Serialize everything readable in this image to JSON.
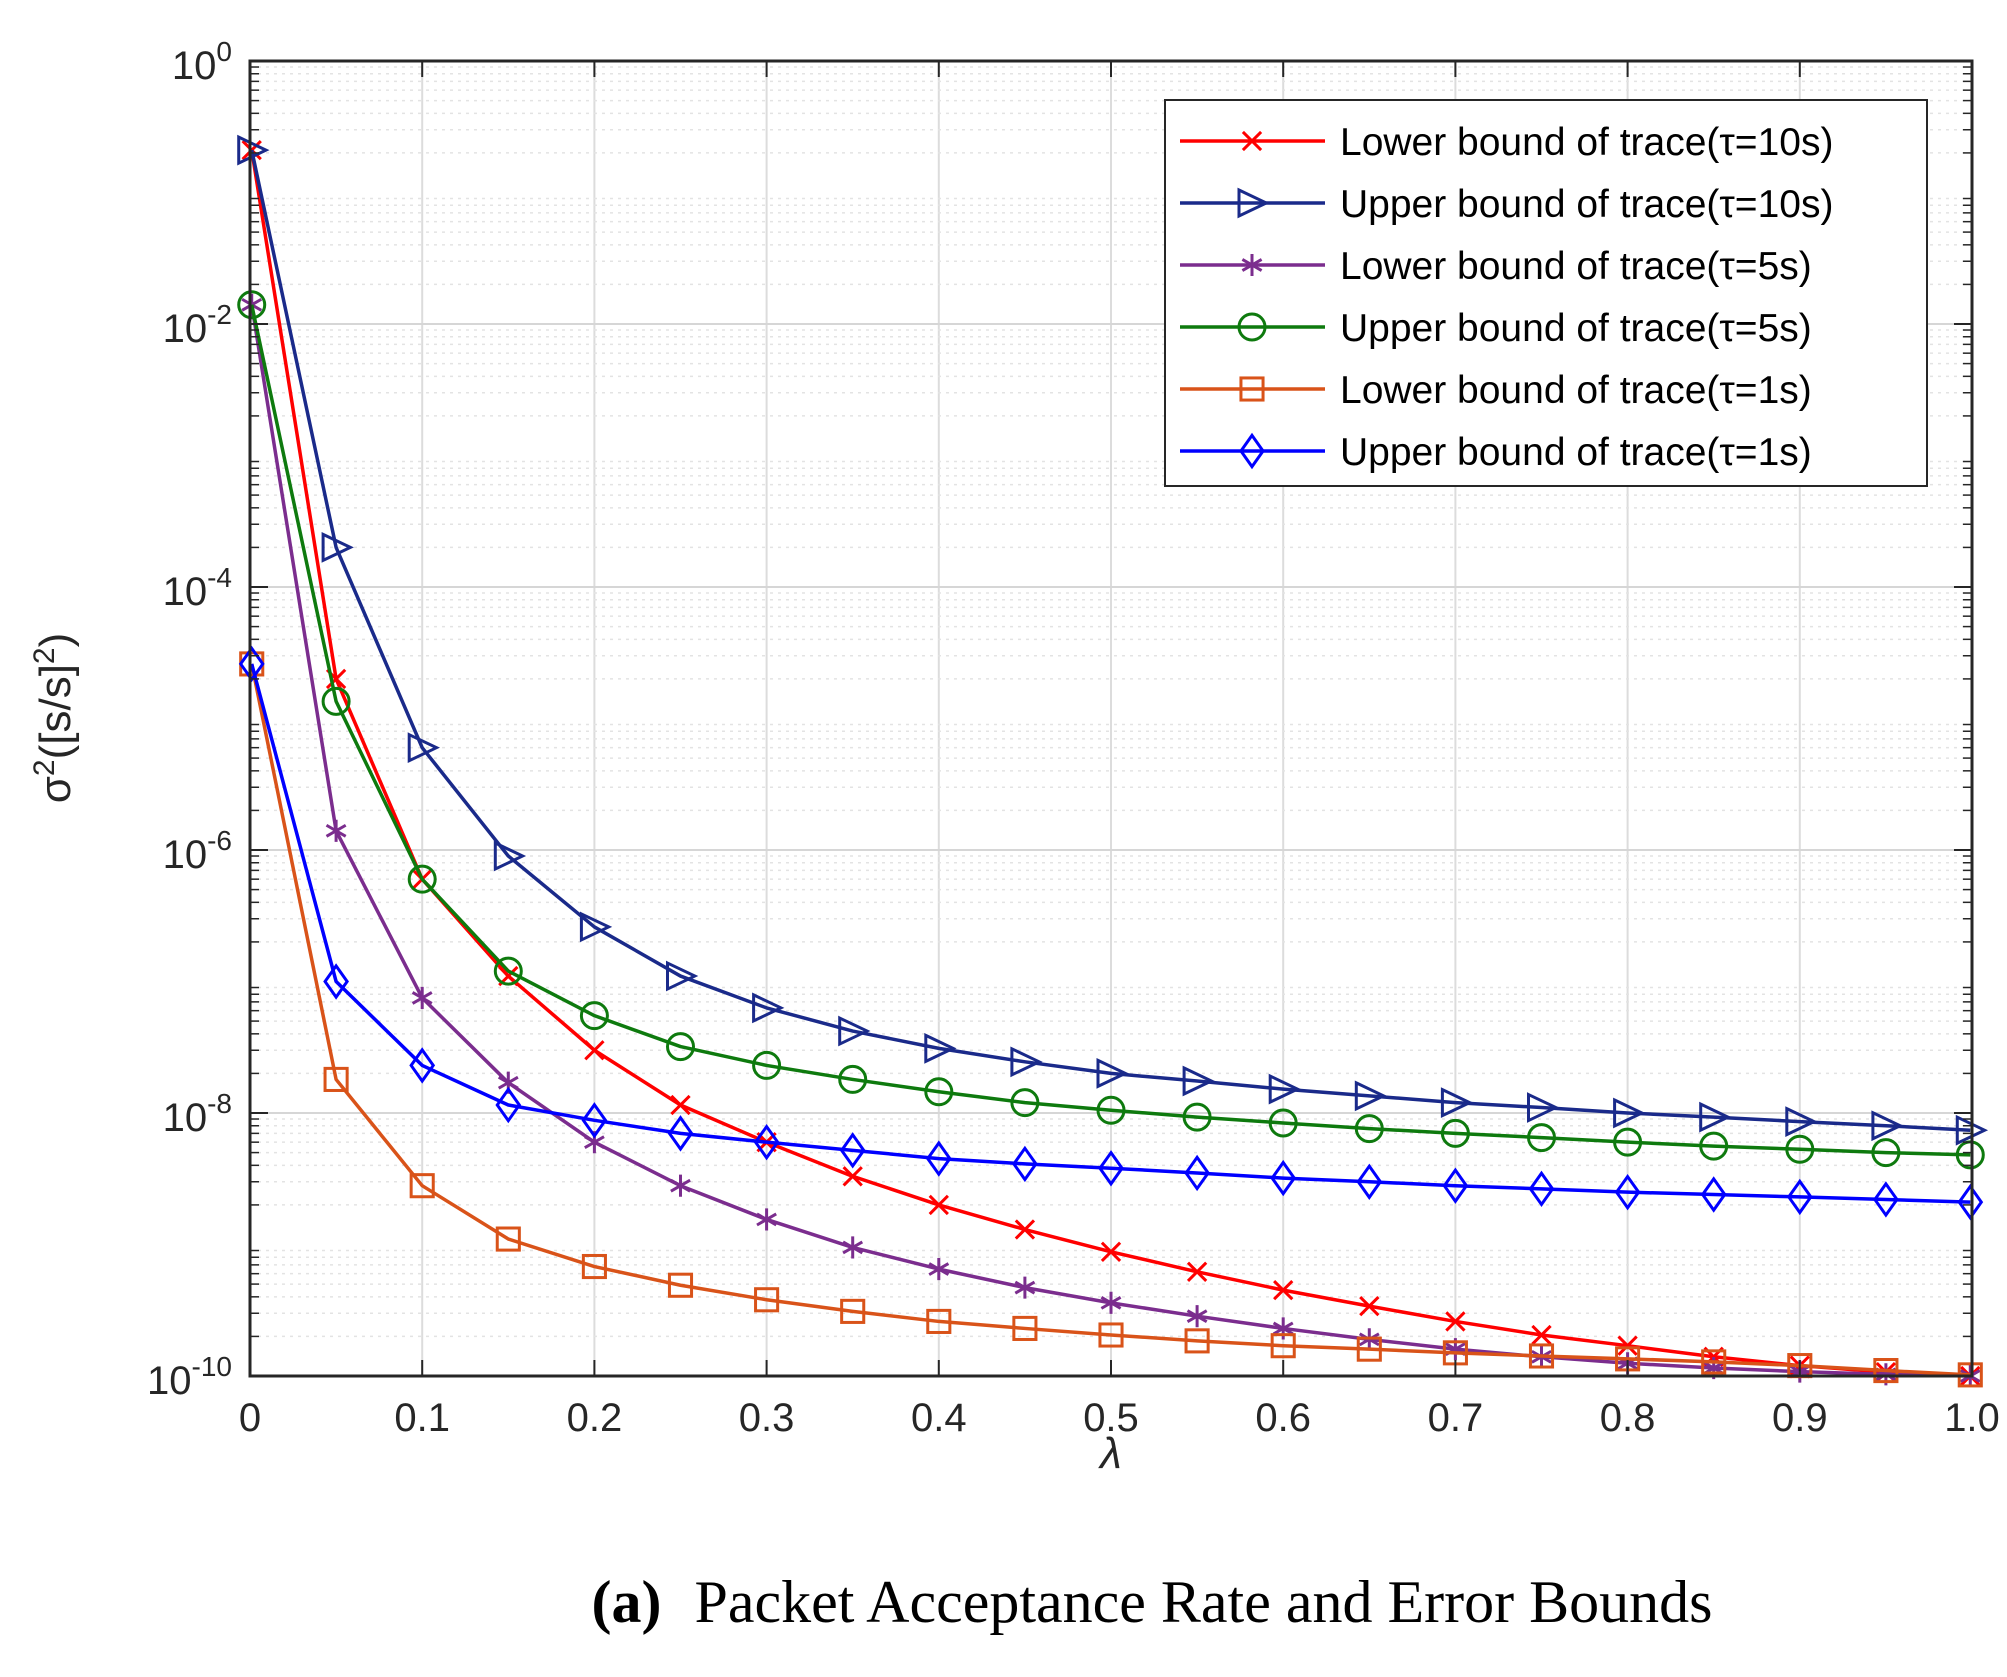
{
  "chart_data": {
    "type": "line",
    "yscale": "log",
    "xlabel": "λ",
    "ylabel": "σ²([s/s]²)",
    "xlim": [
      0,
      1.0
    ],
    "ylim": [
      1e-10,
      1
    ],
    "grid": true,
    "legend_position": "top-right",
    "x_ticks": [
      "0",
      "0.1",
      "0.2",
      "0.3",
      "0.4",
      "0.5",
      "0.6",
      "0.7",
      "0.8",
      "0.9",
      "1.0"
    ],
    "y_ticks": [
      {
        "base": "10",
        "exp": "-10",
        "value": 1e-10
      },
      {
        "base": "10",
        "exp": "-8",
        "value": 1e-08
      },
      {
        "base": "10",
        "exp": "-6",
        "value": 1e-06
      },
      {
        "base": "10",
        "exp": "-4",
        "value": 0.0001
      },
      {
        "base": "10",
        "exp": "-2",
        "value": 0.01
      },
      {
        "base": "10",
        "exp": "0",
        "value": 1
      }
    ],
    "x": [
      0.001,
      0.05,
      0.1,
      0.15,
      0.2,
      0.25,
      0.3,
      0.35,
      0.4,
      0.45,
      0.5,
      0.55,
      0.6,
      0.65,
      0.7,
      0.75,
      0.8,
      0.85,
      0.9,
      0.95,
      0.999
    ],
    "series": [
      {
        "name": "Lower bound of trace(τ=10s)",
        "color": "#ff0000",
        "marker": "x",
        "values": [
          0.21,
          2e-05,
          6e-07,
          1.1e-07,
          3e-08,
          1.15e-08,
          6e-09,
          3.3e-09,
          2e-09,
          1.3e-09,
          8.8e-10,
          6.2e-10,
          4.5e-10,
          3.4e-10,
          2.6e-10,
          2.05e-10,
          1.7e-10,
          1.4e-10,
          1.2e-10,
          1.07e-10,
          1e-10
        ]
      },
      {
        "name": "Upper bound of trace(τ=10s)",
        "color": "#1a2a8a",
        "marker": "triangle-right",
        "values": [
          0.21,
          0.0002,
          6e-06,
          9e-07,
          2.6e-07,
          1.1e-07,
          6.3e-08,
          4.2e-08,
          3.1e-08,
          2.45e-08,
          2e-08,
          1.75e-08,
          1.52e-08,
          1.35e-08,
          1.2e-08,
          1.1e-08,
          1e-08,
          9.3e-09,
          8.6e-09,
          8e-09,
          7.4e-09
        ]
      },
      {
        "name": "Lower bound of trace(τ=5s)",
        "color": "#7b2d8e",
        "marker": "asterisk",
        "values": [
          0.014,
          1.4e-06,
          7.5e-08,
          1.7e-08,
          6e-09,
          2.8e-09,
          1.55e-09,
          9.5e-10,
          6.5e-10,
          4.7e-10,
          3.6e-10,
          2.85e-10,
          2.3e-10,
          1.9e-10,
          1.6e-10,
          1.4e-10,
          1.25e-10,
          1.15e-10,
          1.08e-10,
          1.03e-10,
          1e-10
        ]
      },
      {
        "name": "Upper bound of trace(τ=5s)",
        "color": "#0e7a0e",
        "marker": "circle",
        "values": [
          0.014,
          1.35e-05,
          6e-07,
          1.2e-07,
          5.5e-08,
          3.2e-08,
          2.3e-08,
          1.8e-08,
          1.45e-08,
          1.2e-08,
          1.05e-08,
          9.3e-09,
          8.4e-09,
          7.6e-09,
          7e-09,
          6.5e-09,
          6e-09,
          5.6e-09,
          5.3e-09,
          5e-09,
          4.8e-09
        ]
      },
      {
        "name": "Lower bound of trace(τ=1s)",
        "color": "#d95319",
        "marker": "square",
        "values": [
          2.6e-05,
          1.8e-08,
          2.8e-09,
          1.1e-09,
          6.8e-10,
          4.9e-10,
          3.8e-10,
          3.1e-10,
          2.6e-10,
          2.3e-10,
          2.05e-10,
          1.85e-10,
          1.7e-10,
          1.6e-10,
          1.5e-10,
          1.42e-10,
          1.35e-10,
          1.28e-10,
          1.2e-10,
          1.1e-10,
          1.02e-10
        ]
      },
      {
        "name": "Upper bound of trace(τ=1s)",
        "color": "#0000ff",
        "marker": "diamond",
        "values": [
          2.6e-05,
          1e-07,
          2.3e-08,
          1.15e-08,
          8.8e-09,
          7e-09,
          6e-09,
          5.2e-09,
          4.5e-09,
          4.1e-09,
          3.8e-09,
          3.5e-09,
          3.2e-09,
          3e-09,
          2.8e-09,
          2.65e-09,
          2.5e-09,
          2.4e-09,
          2.3e-09,
          2.2e-09,
          2.1e-09
        ]
      }
    ]
  },
  "caption": {
    "label": "(a)",
    "text": "Packet Acceptance Rate and Error Bounds"
  }
}
